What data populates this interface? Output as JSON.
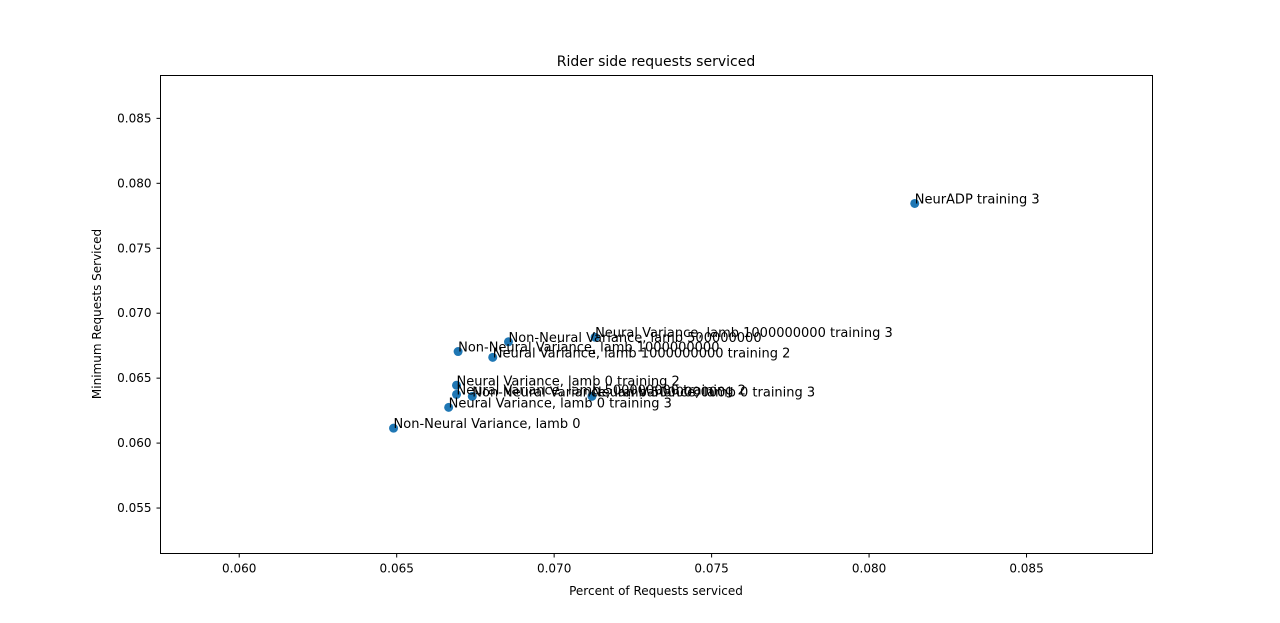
{
  "chart_data": {
    "type": "scatter",
    "title": "Rider side requests serviced",
    "xlabel": "Percent of Requests serviced",
    "ylabel": "Minimum Requests Serviced",
    "xlim": [
      0.0575,
      0.089
    ],
    "ylim": [
      0.0515,
      0.0883
    ],
    "x_ticks": [
      0.06,
      0.065,
      0.07,
      0.075,
      0.08,
      0.085
    ],
    "x_tick_labels": [
      "0.060",
      "0.065",
      "0.070",
      "0.075",
      "0.080",
      "0.085"
    ],
    "y_ticks": [
      0.055,
      0.06,
      0.065,
      0.07,
      0.075,
      0.08,
      0.085
    ],
    "y_tick_labels": [
      "0.055",
      "0.060",
      "0.065",
      "0.070",
      "0.075",
      "0.080",
      "0.085"
    ],
    "grid": false,
    "marker_color": "#1f77b4",
    "points": [
      {
        "x": 0.08145,
        "y": 0.07845,
        "label": "NeurADP training 3"
      },
      {
        "x": 0.0713,
        "y": 0.06815,
        "label": "Neural Variance, lamb 1000000000 training 3"
      },
      {
        "x": 0.06855,
        "y": 0.0678,
        "label": "Non-Neural Variance, lamb 500000000"
      },
      {
        "x": 0.06695,
        "y": 0.06705,
        "label": "Non-Neural Variance, lamb 1000000000"
      },
      {
        "x": 0.06805,
        "y": 0.0666,
        "label": "Neural Variance, lamb 1000000000 training 2"
      },
      {
        "x": 0.0669,
        "y": 0.06445,
        "label": "Neural Variance, lamb 0 training 2"
      },
      {
        "x": 0.0669,
        "y": 0.06375,
        "label": "Neural Variance, lamb 500000000 training 2"
      },
      {
        "x": 0.0674,
        "y": 0.0636,
        "label": "Non-Neural Variance, lamb 500000000"
      },
      {
        "x": 0.0712,
        "y": 0.0636,
        "label": "Neural Variance, lamb 0 training 3"
      },
      {
        "x": 0.06665,
        "y": 0.06275,
        "label": "Neural Variance, lamb 0 training 3"
      },
      {
        "x": 0.0649,
        "y": 0.06115,
        "label": "Non-Neural Variance, lamb 0"
      }
    ]
  }
}
